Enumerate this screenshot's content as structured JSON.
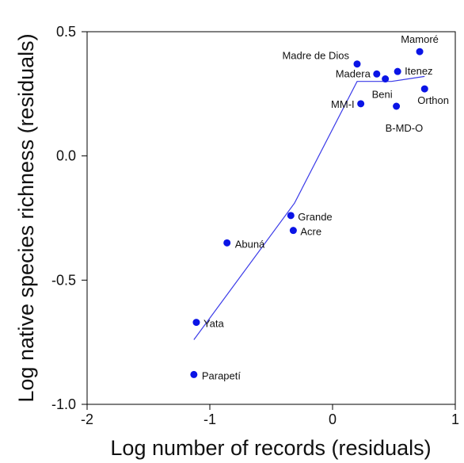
{
  "chart_data": {
    "type": "scatter",
    "xlabel": "Log number of records (residuals)",
    "ylabel": "Log native species richness (residuals)",
    "xlim": [
      -2,
      1
    ],
    "ylim": [
      -1.0,
      0.5
    ],
    "x_ticks": [
      -2,
      -1,
      0,
      1
    ],
    "x_tick_labels": [
      "-2",
      "-1",
      "0",
      "1"
    ],
    "y_ticks": [
      -1.0,
      -0.5,
      0.0,
      0.5
    ],
    "y_tick_labels": [
      "-1.0",
      "-0.5",
      "0.0",
      "0.5"
    ],
    "grid": false,
    "colors": {
      "points": "#0a14e6",
      "line": "#3a3ae8",
      "axis": "#000000"
    },
    "points": [
      {
        "label": "Mamoré",
        "x": 0.71,
        "y": 0.42
      },
      {
        "label": "Madre de Dios",
        "x": 0.2,
        "y": 0.37
      },
      {
        "label": "Madera",
        "x": 0.36,
        "y": 0.33
      },
      {
        "label": "Itenez",
        "x": 0.53,
        "y": 0.34
      },
      {
        "label": "Beni",
        "x": 0.43,
        "y": 0.31
      },
      {
        "label": "Orthon",
        "x": 0.75,
        "y": 0.27
      },
      {
        "label": "MM-I",
        "x": 0.23,
        "y": 0.21
      },
      {
        "label": "B-MD-O",
        "x": 0.52,
        "y": 0.2
      },
      {
        "label": "Grande",
        "x": -0.34,
        "y": -0.24
      },
      {
        "label": "Acre",
        "x": -0.32,
        "y": -0.3
      },
      {
        "label": "Abuná",
        "x": -0.86,
        "y": -0.35
      },
      {
        "label": "Yata",
        "x": -1.11,
        "y": -0.67
      },
      {
        "label": "Parapetí",
        "x": -1.13,
        "y": -0.88
      }
    ],
    "fit_line": {
      "x": [
        -1.13,
        -0.31,
        0.2,
        0.36,
        0.48,
        0.75
      ],
      "y": [
        -0.74,
        -0.19,
        0.3,
        0.3,
        0.3,
        0.32
      ]
    }
  }
}
